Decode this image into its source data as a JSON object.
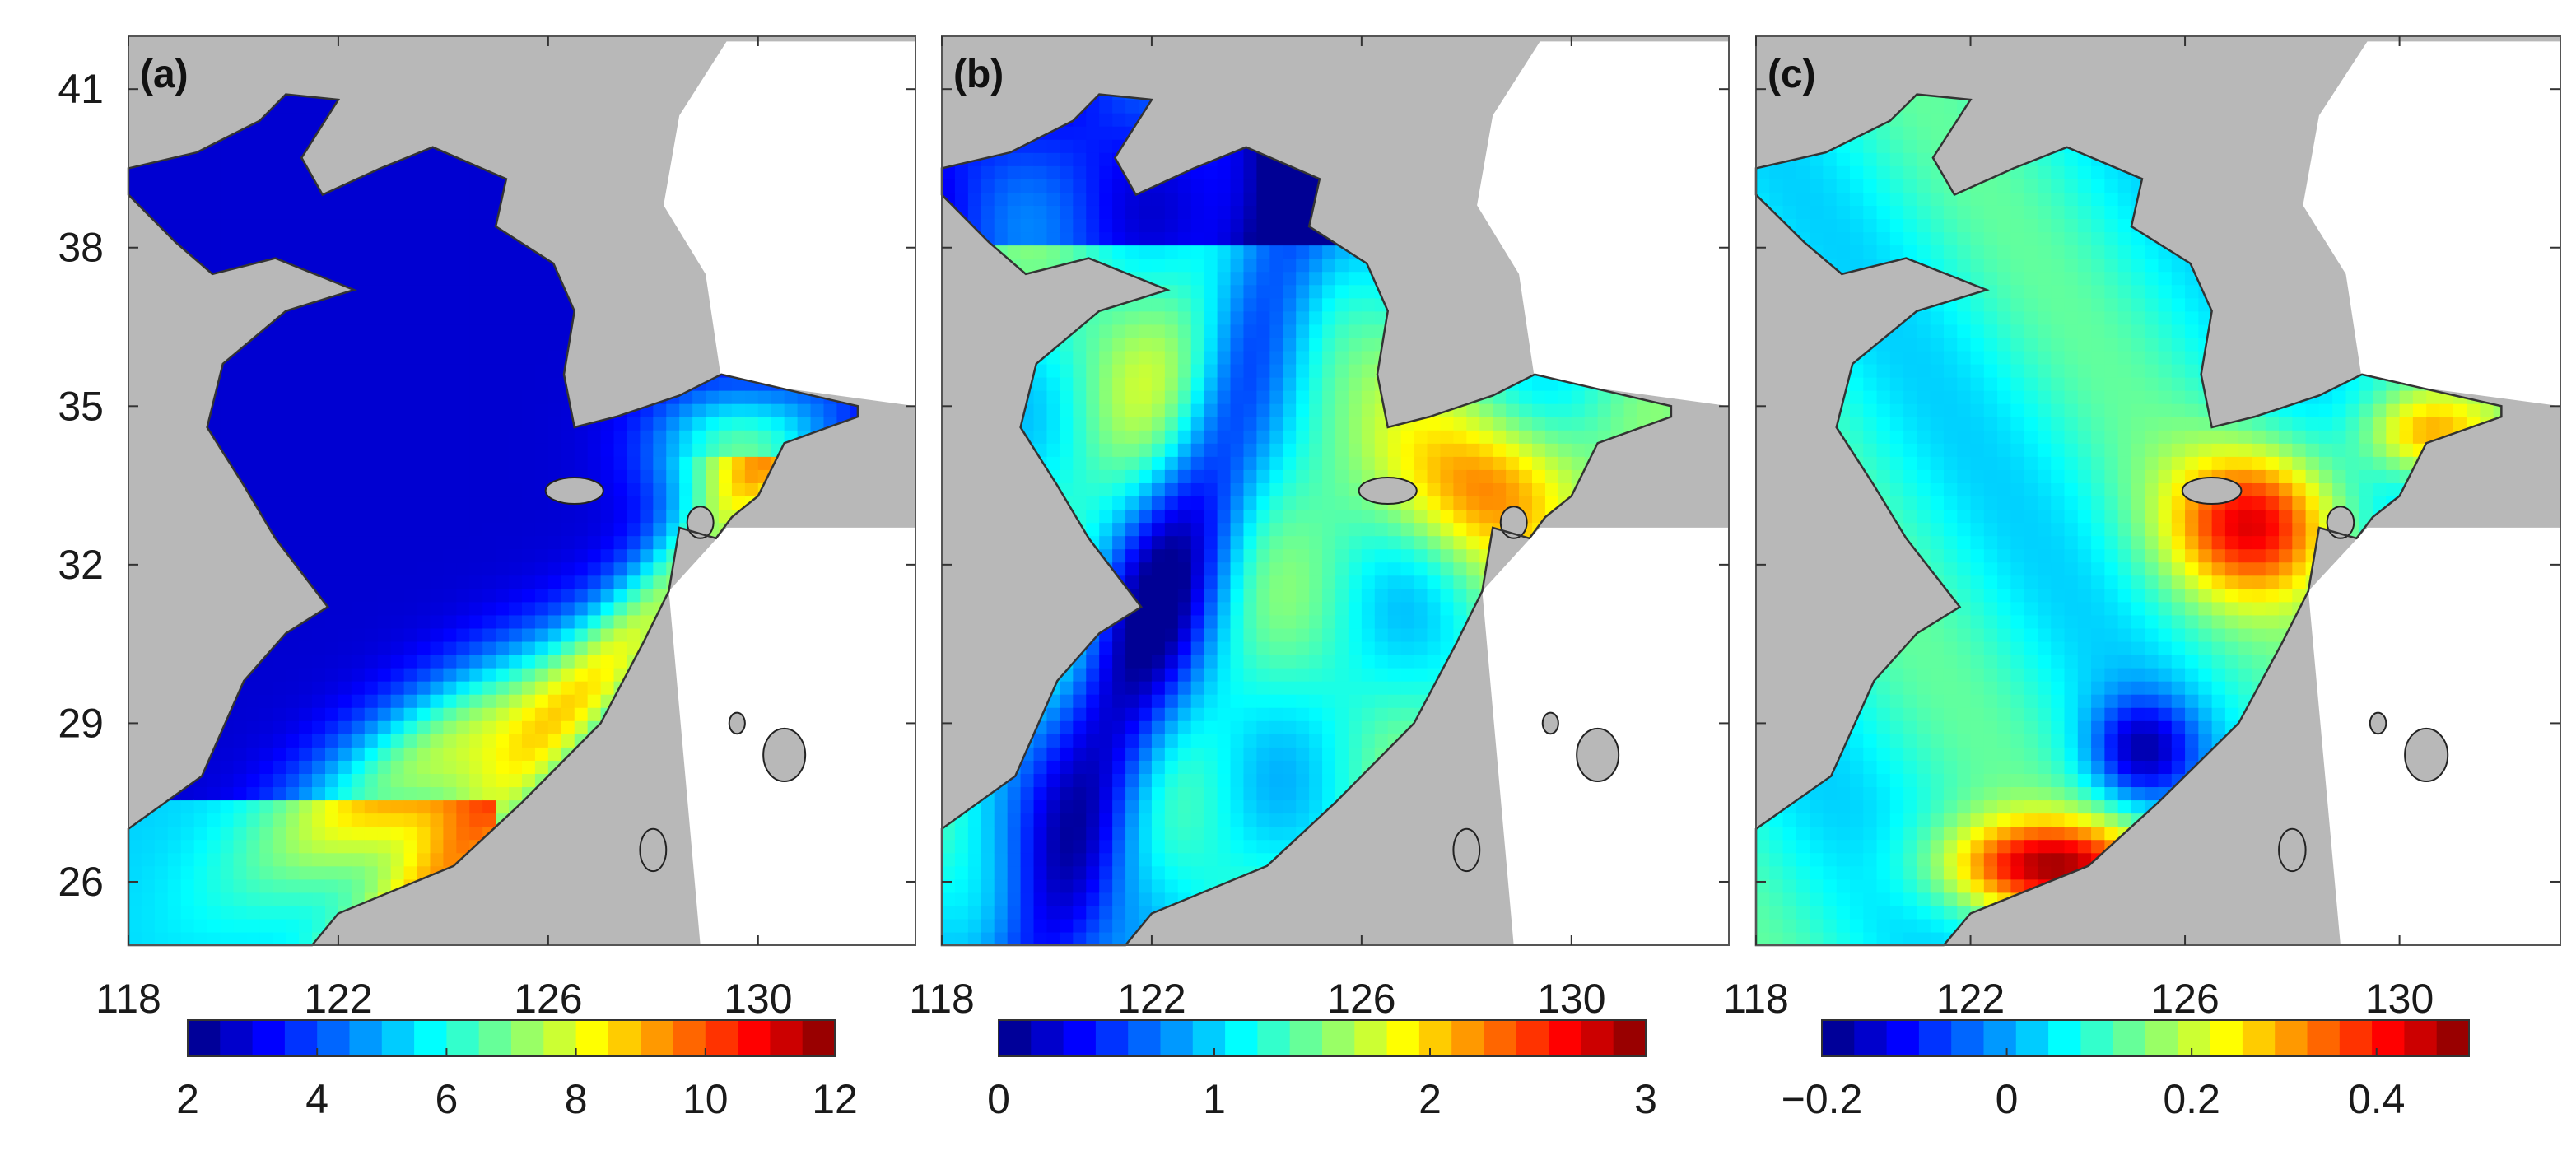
{
  "chart_data": [
    {
      "type": "heatmap",
      "panel_label": "(a)",
      "x_ticks": [
        118,
        122,
        126,
        130
      ],
      "y_ticks": [
        41,
        38,
        35,
        32,
        29,
        26
      ],
      "xlim": [
        118,
        133
      ],
      "ylim": [
        24.8,
        42
      ],
      "colorbar": {
        "min": 2,
        "max": 12,
        "ticks": [
          2,
          4,
          6,
          8,
          10,
          12
        ]
      },
      "field_summary": [
        {
          "region": "Bohai Sea",
          "value": 2
        },
        {
          "region": "Yellow Sea central",
          "value": 3
        },
        {
          "region": "East China Sea shelf",
          "value": 6
        },
        {
          "region": "Korea Strait",
          "value": 10
        },
        {
          "region": "Shelf break near 128E 31N",
          "value": 11.5
        },
        {
          "region": "Taiwan Strait",
          "value": 12
        }
      ]
    },
    {
      "type": "heatmap",
      "panel_label": "(b)",
      "x_ticks": [
        118,
        122,
        126,
        130
      ],
      "y_ticks": [
        41,
        38,
        35,
        32,
        29,
        26
      ],
      "xlim": [
        118,
        133
      ],
      "ylim": [
        24.8,
        42
      ],
      "colorbar": {
        "min": 0,
        "max": 3,
        "ticks": [
          0,
          1,
          2,
          3
        ]
      },
      "field_summary": [
        {
          "region": "Bohai Sea",
          "value": 0.3
        },
        {
          "region": "Coastal China",
          "value": 0.4
        },
        {
          "region": "Yellow Sea central",
          "value": 1.7
        },
        {
          "region": "East China Sea shelf",
          "value": 1.5
        },
        {
          "region": "Korea Strait",
          "value": 2.6
        },
        {
          "region": "Taiwan Strait",
          "value": 2.4
        }
      ]
    },
    {
      "type": "heatmap",
      "panel_label": "(c)",
      "x_ticks": [
        118,
        122,
        126,
        130
      ],
      "y_ticks": [
        41,
        38,
        35,
        32,
        29,
        26
      ],
      "xlim": [
        118,
        133
      ],
      "ylim": [
        24.8,
        42
      ],
      "colorbar": {
        "min": -0.2,
        "max": 0.5,
        "ticks": [
          "−0.2",
          "0",
          "0.2",
          "0.4"
        ],
        "tick_values": [
          -0.2,
          0,
          0.2,
          0.4
        ]
      },
      "field_summary": [
        {
          "region": "Bohai Sea",
          "value": 0.05
        },
        {
          "region": "Yellow Sea central",
          "value": 0.2
        },
        {
          "region": "East China Sea shelf",
          "value": 0.1
        },
        {
          "region": "Cheju / Korea Strait",
          "value": 0.4
        },
        {
          "region": "Shelf break near 127E 28N",
          "value": -0.15
        },
        {
          "region": "Taiwan Strait",
          "value": 0.45
        }
      ]
    }
  ]
}
